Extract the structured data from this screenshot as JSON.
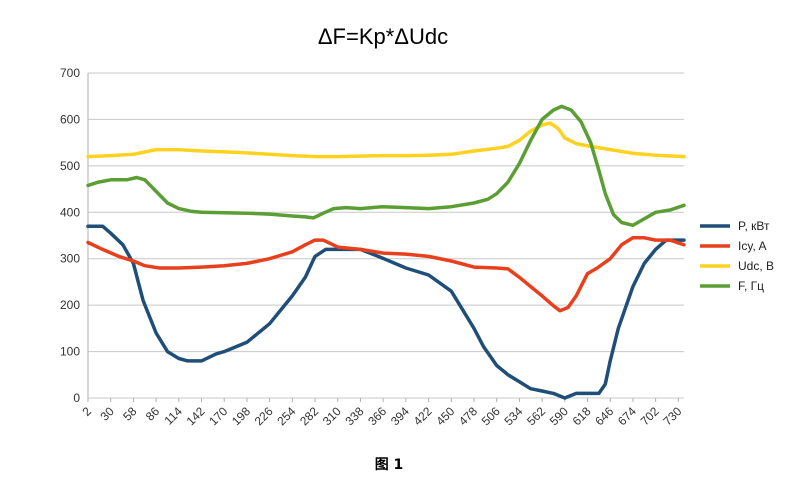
{
  "chart_data": {
    "type": "line",
    "title": "ΔF=Kp*ΔUdc",
    "caption": "图 1",
    "xlabel": "",
    "ylabel": "",
    "ylim": [
      0,
      700
    ],
    "y_ticks": [
      0,
      100,
      200,
      300,
      400,
      500,
      600,
      700
    ],
    "grid": true,
    "legend_position": "right",
    "categories": [
      "2",
      "30",
      "58",
      "86",
      "114",
      "142",
      "170",
      "198",
      "226",
      "254",
      "282",
      "310",
      "338",
      "366",
      "394",
      "422",
      "450",
      "478",
      "506",
      "534",
      "562",
      "590",
      "618",
      "646",
      "674",
      "702",
      "730"
    ],
    "x_domain": [
      2,
      737
    ],
    "series": [
      {
        "name": "P, кВт",
        "color": "#1f4e79",
        "points": [
          [
            2,
            370
          ],
          [
            20,
            370
          ],
          [
            30,
            355
          ],
          [
            45,
            330
          ],
          [
            58,
            290
          ],
          [
            70,
            210
          ],
          [
            86,
            140
          ],
          [
            100,
            100
          ],
          [
            114,
            85
          ],
          [
            125,
            80
          ],
          [
            142,
            80
          ],
          [
            160,
            95
          ],
          [
            170,
            100
          ],
          [
            198,
            120
          ],
          [
            226,
            160
          ],
          [
            254,
            220
          ],
          [
            270,
            260
          ],
          [
            282,
            305
          ],
          [
            295,
            320
          ],
          [
            310,
            320
          ],
          [
            338,
            320
          ],
          [
            360,
            305
          ],
          [
            394,
            280
          ],
          [
            422,
            265
          ],
          [
            450,
            230
          ],
          [
            478,
            150
          ],
          [
            490,
            110
          ],
          [
            506,
            70
          ],
          [
            520,
            50
          ],
          [
            534,
            35
          ],
          [
            548,
            20
          ],
          [
            562,
            15
          ],
          [
            576,
            10
          ],
          [
            590,
            0
          ],
          [
            604,
            10
          ],
          [
            618,
            10
          ],
          [
            632,
            10
          ],
          [
            640,
            30
          ],
          [
            646,
            80
          ],
          [
            656,
            150
          ],
          [
            664,
            190
          ],
          [
            674,
            240
          ],
          [
            688,
            290
          ],
          [
            702,
            320
          ],
          [
            715,
            340
          ],
          [
            737,
            340
          ]
        ]
      },
      {
        "name": "Icy, A",
        "color": "#e8401c",
        "points": [
          [
            2,
            335
          ],
          [
            20,
            320
          ],
          [
            40,
            305
          ],
          [
            58,
            295
          ],
          [
            72,
            285
          ],
          [
            90,
            280
          ],
          [
            114,
            280
          ],
          [
            142,
            282
          ],
          [
            170,
            285
          ],
          [
            198,
            290
          ],
          [
            226,
            300
          ],
          [
            254,
            315
          ],
          [
            270,
            330
          ],
          [
            282,
            340
          ],
          [
            292,
            340
          ],
          [
            310,
            325
          ],
          [
            338,
            320
          ],
          [
            366,
            312
          ],
          [
            394,
            310
          ],
          [
            422,
            305
          ],
          [
            450,
            295
          ],
          [
            478,
            282
          ],
          [
            506,
            280
          ],
          [
            520,
            278
          ],
          [
            534,
            260
          ],
          [
            548,
            240
          ],
          [
            562,
            220
          ],
          [
            575,
            200
          ],
          [
            584,
            188
          ],
          [
            594,
            195
          ],
          [
            604,
            220
          ],
          [
            618,
            268
          ],
          [
            630,
            280
          ],
          [
            646,
            300
          ],
          [
            660,
            330
          ],
          [
            674,
            345
          ],
          [
            688,
            345
          ],
          [
            702,
            340
          ],
          [
            720,
            340
          ],
          [
            737,
            330
          ]
        ]
      },
      {
        "name": "Udc, B",
        "color": "#ffd21f",
        "points": [
          [
            2,
            520
          ],
          [
            30,
            522
          ],
          [
            58,
            525
          ],
          [
            86,
            535
          ],
          [
            114,
            535
          ],
          [
            142,
            532
          ],
          [
            170,
            530
          ],
          [
            198,
            528
          ],
          [
            226,
            525
          ],
          [
            254,
            522
          ],
          [
            282,
            520
          ],
          [
            310,
            520
          ],
          [
            338,
            521
          ],
          [
            366,
            522
          ],
          [
            394,
            522
          ],
          [
            422,
            523
          ],
          [
            450,
            525
          ],
          [
            478,
            532
          ],
          [
            506,
            538
          ],
          [
            520,
            542
          ],
          [
            534,
            555
          ],
          [
            548,
            575
          ],
          [
            562,
            588
          ],
          [
            572,
            592
          ],
          [
            582,
            580
          ],
          [
            590,
            560
          ],
          [
            604,
            548
          ],
          [
            618,
            543
          ],
          [
            646,
            535
          ],
          [
            674,
            527
          ],
          [
            702,
            523
          ],
          [
            737,
            520
          ]
        ]
      },
      {
        "name": "F, Гц",
        "color": "#5a9e34",
        "points": [
          [
            2,
            458
          ],
          [
            15,
            465
          ],
          [
            30,
            470
          ],
          [
            50,
            470
          ],
          [
            62,
            475
          ],
          [
            72,
            470
          ],
          [
            86,
            445
          ],
          [
            100,
            420
          ],
          [
            114,
            408
          ],
          [
            130,
            402
          ],
          [
            142,
            400
          ],
          [
            170,
            399
          ],
          [
            198,
            398
          ],
          [
            226,
            396
          ],
          [
            254,
            392
          ],
          [
            270,
            390
          ],
          [
            280,
            388
          ],
          [
            292,
            398
          ],
          [
            305,
            408
          ],
          [
            320,
            410
          ],
          [
            338,
            408
          ],
          [
            366,
            412
          ],
          [
            394,
            410
          ],
          [
            422,
            408
          ],
          [
            450,
            412
          ],
          [
            478,
            420
          ],
          [
            495,
            428
          ],
          [
            506,
            440
          ],
          [
            520,
            465
          ],
          [
            534,
            505
          ],
          [
            548,
            555
          ],
          [
            562,
            600
          ],
          [
            576,
            620
          ],
          [
            586,
            628
          ],
          [
            598,
            620
          ],
          [
            610,
            595
          ],
          [
            622,
            550
          ],
          [
            632,
            490
          ],
          [
            640,
            440
          ],
          [
            650,
            395
          ],
          [
            660,
            378
          ],
          [
            674,
            372
          ],
          [
            690,
            388
          ],
          [
            702,
            400
          ],
          [
            720,
            405
          ],
          [
            737,
            415
          ]
        ]
      }
    ]
  }
}
